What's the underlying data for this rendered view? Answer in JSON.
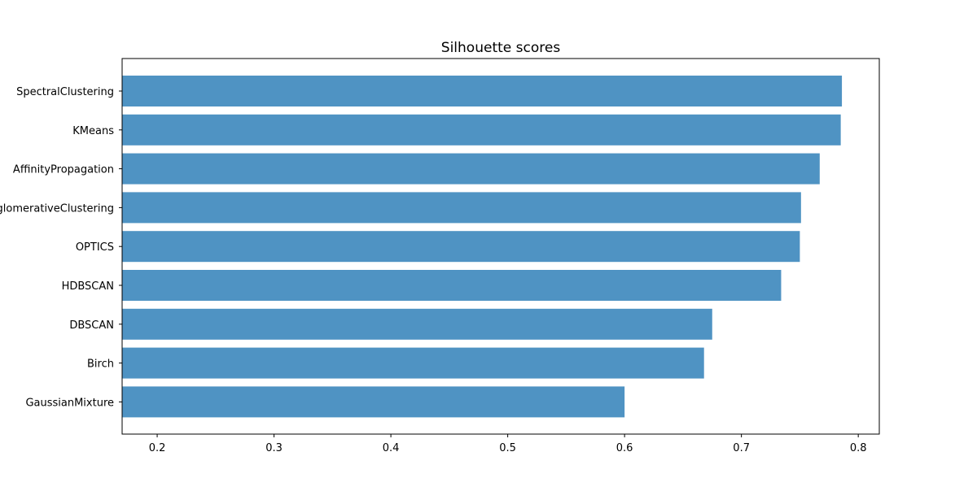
{
  "chart_data": {
    "type": "bar",
    "orientation": "horizontal",
    "title": "Silhouette scores",
    "xlabel": "",
    "ylabel": "",
    "categories": [
      "SpectralClustering",
      "KMeans",
      "AffinityPropagation",
      "AgglomerativeClustering",
      "OPTICS",
      "HDBSCAN",
      "DBSCAN",
      "Birch",
      "GaussianMixture"
    ],
    "values": [
      0.786,
      0.785,
      0.767,
      0.751,
      0.75,
      0.734,
      0.675,
      0.668,
      0.6
    ],
    "xlim": [
      0.17,
      0.818
    ],
    "xticks": [
      0.2,
      0.3,
      0.4,
      0.5,
      0.6,
      0.7,
      0.8
    ],
    "xtick_labels": [
      "0.2",
      "0.3",
      "0.4",
      "0.5",
      "0.6",
      "0.7",
      "0.8"
    ],
    "grid": false,
    "legend": "none",
    "bar_color": "#4f93c3"
  }
}
